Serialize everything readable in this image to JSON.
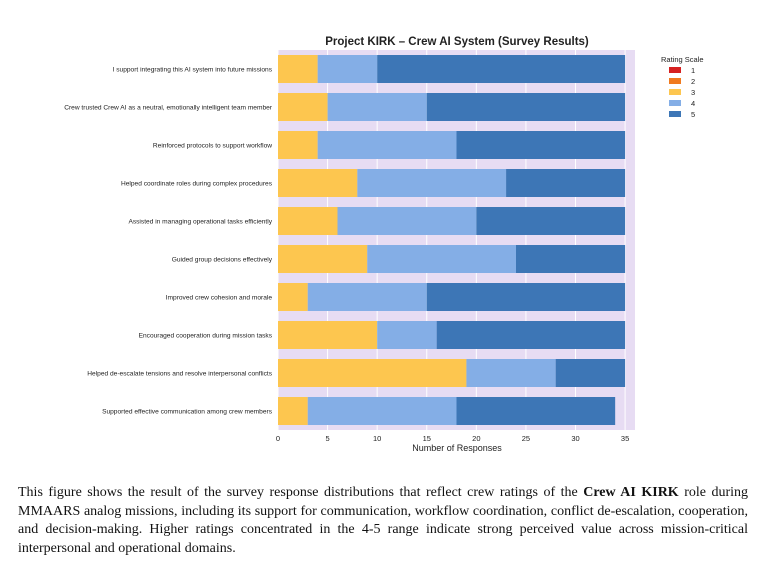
{
  "chart_data": {
    "type": "bar",
    "orientation": "horizontal",
    "stacked": true,
    "title": "Project KIRK – Crew AI System (Survey Results)",
    "xlabel": "Number of Responses",
    "ylabel": "",
    "xlim": [
      0,
      36
    ],
    "xticks": [
      0,
      5,
      10,
      15,
      20,
      25,
      30,
      35
    ],
    "grid": true,
    "legend_title": "Rating Scale",
    "legend_position": "right",
    "categories": [
      "I support integrating this AI system into future missions",
      "Crew trusted Crew AI as a neutral, emotionally intelligent team member",
      "Reinforced protocols to support workflow",
      "Helped coordinate roles during complex procedures",
      "Assisted in managing operational tasks efficiently",
      "Guided group decisions effectively",
      "Improved crew cohesion and morale",
      "Encouraged cooperation during mission tasks",
      "Helped de-escalate tensions and resolve interpersonal conflicts",
      "Supported effective communication among crew members"
    ],
    "series": [
      {
        "name": "1",
        "color": "#d62020",
        "values": [
          0,
          0,
          0,
          0,
          0,
          0,
          0,
          0,
          0,
          0
        ]
      },
      {
        "name": "2",
        "color": "#f07a1f",
        "values": [
          0,
          0,
          0,
          0,
          0,
          0,
          0,
          0,
          0,
          0
        ]
      },
      {
        "name": "3",
        "color": "#fdc64f",
        "values": [
          4,
          5,
          4,
          8,
          6,
          9,
          3,
          10,
          19,
          3
        ]
      },
      {
        "name": "4",
        "color": "#84aee6",
        "values": [
          6,
          10,
          14,
          15,
          14,
          15,
          12,
          6,
          9,
          15
        ]
      },
      {
        "name": "5",
        "color": "#3d76b6",
        "values": [
          25,
          20,
          17,
          12,
          15,
          11,
          20,
          19,
          7,
          16
        ]
      }
    ]
  },
  "caption": {
    "before": "This figure shows the result of the survey response distributions that reflect crew ratings of the ",
    "bold": "Crew AI KIRK",
    "after": " role during MMAARS analog missions, including its support for communication, workflow coordination, conflict de-escalation, cooperation, and decision-making. Higher ratings concentrated in the 4-5 range indicate strong perceived value across mission-critical interpersonal and operational domains."
  }
}
